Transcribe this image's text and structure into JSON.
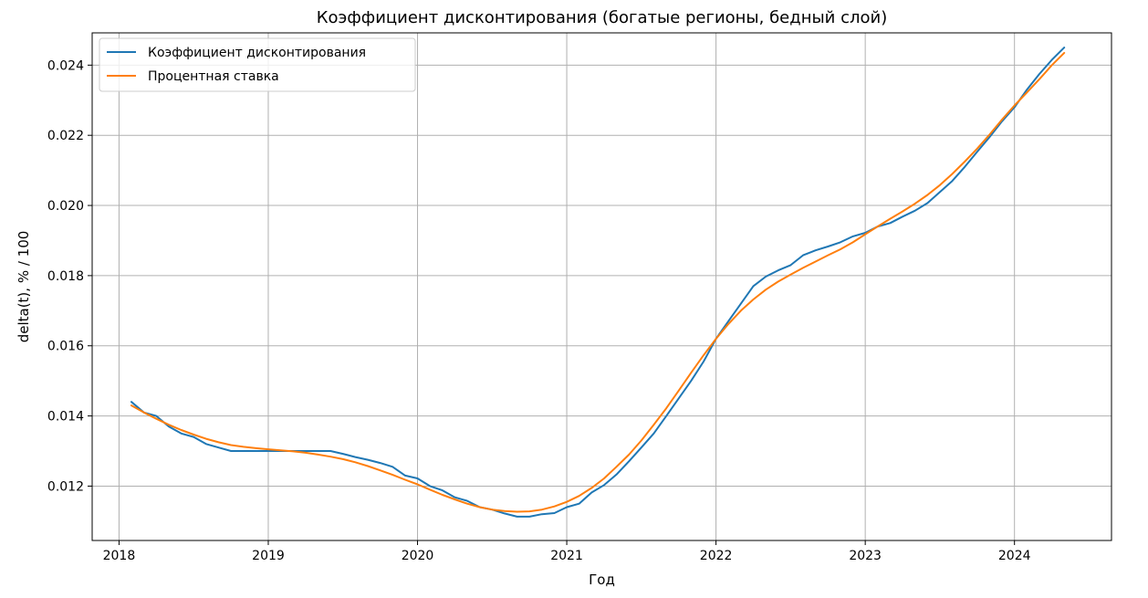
{
  "chart_data": {
    "type": "line",
    "title": "Коэффициент дисконтирования (богатые регионы, бедный слой)",
    "xlabel": "Год",
    "ylabel": "delta(t), % / 100",
    "xlim": [
      2017.82,
      2024.65
    ],
    "ylim": [
      0.01045,
      0.02492
    ],
    "x_ticks": [
      2018,
      2019,
      2020,
      2021,
      2022,
      2023,
      2024
    ],
    "y_ticks": [
      0.012,
      0.014,
      0.016,
      0.018,
      0.02,
      0.022,
      0.024
    ],
    "y_tick_labels": [
      "0.012",
      "0.014",
      "0.016",
      "0.018",
      "0.020",
      "0.022",
      "0.024"
    ],
    "grid": true,
    "legend_position": "upper-left",
    "series": [
      {
        "name": "Коэффициент дисконтирования",
        "color": "#1f77b4",
        "points": [
          [
            2018.083,
            0.0144
          ],
          [
            2018.167,
            0.0141
          ],
          [
            2018.25,
            0.014
          ],
          [
            2018.333,
            0.0137
          ],
          [
            2018.417,
            0.0135
          ],
          [
            2018.5,
            0.0134
          ],
          [
            2018.583,
            0.0132
          ],
          [
            2018.667,
            0.0131
          ],
          [
            2018.75,
            0.013
          ],
          [
            2018.833,
            0.013
          ],
          [
            2019.0,
            0.013
          ],
          [
            2019.167,
            0.013
          ],
          [
            2019.417,
            0.013
          ],
          [
            2019.5,
            0.01292
          ],
          [
            2019.583,
            0.01283
          ],
          [
            2019.667,
            0.01275
          ],
          [
            2019.75,
            0.01266
          ],
          [
            2019.833,
            0.01255
          ],
          [
            2019.917,
            0.0123
          ],
          [
            2020.0,
            0.01222
          ],
          [
            2020.083,
            0.012
          ],
          [
            2020.167,
            0.01188
          ],
          [
            2020.25,
            0.01168
          ],
          [
            2020.333,
            0.01158
          ],
          [
            2020.417,
            0.0114
          ],
          [
            2020.5,
            0.01133
          ],
          [
            2020.583,
            0.01122
          ],
          [
            2020.667,
            0.01113
          ],
          [
            2020.75,
            0.01113
          ],
          [
            2020.833,
            0.0112
          ],
          [
            2020.917,
            0.01123
          ],
          [
            2021.0,
            0.0114
          ],
          [
            2021.083,
            0.0115
          ],
          [
            2021.167,
            0.01182
          ],
          [
            2021.25,
            0.01203
          ],
          [
            2021.333,
            0.01233
          ],
          [
            2021.417,
            0.01271
          ],
          [
            2021.5,
            0.0131
          ],
          [
            2021.583,
            0.0135
          ],
          [
            2021.667,
            0.014
          ],
          [
            2021.75,
            0.0145
          ],
          [
            2021.833,
            0.015
          ],
          [
            2021.917,
            0.01555
          ],
          [
            2022.0,
            0.0162
          ],
          [
            2022.083,
            0.0167
          ],
          [
            2022.167,
            0.0172
          ],
          [
            2022.25,
            0.0177
          ],
          [
            2022.333,
            0.01797
          ],
          [
            2022.417,
            0.01815
          ],
          [
            2022.5,
            0.0183
          ],
          [
            2022.583,
            0.01858
          ],
          [
            2022.667,
            0.01872
          ],
          [
            2022.75,
            0.01883
          ],
          [
            2022.833,
            0.01895
          ],
          [
            2022.917,
            0.01912
          ],
          [
            2023.0,
            0.01922
          ],
          [
            2023.083,
            0.0194
          ],
          [
            2023.167,
            0.0195
          ],
          [
            2023.25,
            0.01968
          ],
          [
            2023.333,
            0.01985
          ],
          [
            2023.417,
            0.02007
          ],
          [
            2023.5,
            0.02038
          ],
          [
            2023.583,
            0.0207
          ],
          [
            2023.667,
            0.0211
          ],
          [
            2023.75,
            0.02153
          ],
          [
            2023.833,
            0.02195
          ],
          [
            2023.917,
            0.0224
          ],
          [
            2024.0,
            0.0228
          ],
          [
            2024.083,
            0.0233
          ],
          [
            2024.167,
            0.02375
          ],
          [
            2024.25,
            0.02415
          ],
          [
            2024.333,
            0.0245
          ]
        ]
      },
      {
        "name": "Процентная ставка",
        "color": "#ff7f0e",
        "points": [
          [
            2018.083,
            0.0143
          ],
          [
            2018.167,
            0.0141
          ],
          [
            2018.25,
            0.01392
          ],
          [
            2018.333,
            0.01375
          ],
          [
            2018.417,
            0.0136
          ],
          [
            2018.5,
            0.01347
          ],
          [
            2018.583,
            0.01335
          ],
          [
            2018.667,
            0.01325
          ],
          [
            2018.75,
            0.01317
          ],
          [
            2018.833,
            0.01312
          ],
          [
            2018.917,
            0.01308
          ],
          [
            2019.0,
            0.01305
          ],
          [
            2019.083,
            0.01302
          ],
          [
            2019.167,
            0.01299
          ],
          [
            2019.25,
            0.01295
          ],
          [
            2019.333,
            0.0129
          ],
          [
            2019.417,
            0.01284
          ],
          [
            2019.5,
            0.01277
          ],
          [
            2019.583,
            0.01268
          ],
          [
            2019.667,
            0.01257
          ],
          [
            2019.75,
            0.01245
          ],
          [
            2019.833,
            0.01232
          ],
          [
            2019.917,
            0.01218
          ],
          [
            2020.0,
            0.01205
          ],
          [
            2020.083,
            0.0119
          ],
          [
            2020.167,
            0.01175
          ],
          [
            2020.25,
            0.01162
          ],
          [
            2020.333,
            0.0115
          ],
          [
            2020.417,
            0.0114
          ],
          [
            2020.5,
            0.01133
          ],
          [
            2020.583,
            0.01129
          ],
          [
            2020.667,
            0.01127
          ],
          [
            2020.75,
            0.01128
          ],
          [
            2020.833,
            0.01133
          ],
          [
            2020.917,
            0.01142
          ],
          [
            2021.0,
            0.01155
          ],
          [
            2021.083,
            0.01172
          ],
          [
            2021.167,
            0.01195
          ],
          [
            2021.25,
            0.01222
          ],
          [
            2021.333,
            0.01255
          ],
          [
            2021.417,
            0.0129
          ],
          [
            2021.5,
            0.0133
          ],
          [
            2021.583,
            0.01375
          ],
          [
            2021.667,
            0.01422
          ],
          [
            2021.75,
            0.01472
          ],
          [
            2021.833,
            0.01523
          ],
          [
            2021.917,
            0.01573
          ],
          [
            2022.0,
            0.0162
          ],
          [
            2022.083,
            0.01662
          ],
          [
            2022.167,
            0.017
          ],
          [
            2022.25,
            0.01732
          ],
          [
            2022.333,
            0.0176
          ],
          [
            2022.417,
            0.01783
          ],
          [
            2022.5,
            0.01803
          ],
          [
            2022.583,
            0.01822
          ],
          [
            2022.667,
            0.0184
          ],
          [
            2022.75,
            0.01858
          ],
          [
            2022.833,
            0.01875
          ],
          [
            2022.917,
            0.01895
          ],
          [
            2023.0,
            0.01918
          ],
          [
            2023.083,
            0.0194
          ],
          [
            2023.167,
            0.01962
          ],
          [
            2023.25,
            0.01983
          ],
          [
            2023.333,
            0.02005
          ],
          [
            2023.417,
            0.0203
          ],
          [
            2023.5,
            0.02058
          ],
          [
            2023.583,
            0.0209
          ],
          [
            2023.667,
            0.02125
          ],
          [
            2023.75,
            0.02162
          ],
          [
            2023.833,
            0.02202
          ],
          [
            2023.917,
            0.02245
          ],
          [
            2024.0,
            0.02285
          ],
          [
            2024.083,
            0.02322
          ],
          [
            2024.167,
            0.0236
          ],
          [
            2024.25,
            0.024
          ],
          [
            2024.333,
            0.02435
          ]
        ]
      }
    ]
  }
}
